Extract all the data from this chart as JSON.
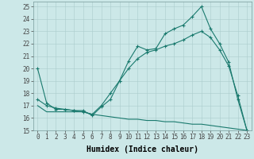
{
  "xlabel": "Humidex (Indice chaleur)",
  "ylabel": "",
  "background_color": "#cce8e8",
  "grid_color": "#aacccc",
  "line_color": "#1a7a6e",
  "xlim": [
    -0.5,
    23.5
  ],
  "ylim": [
    15,
    25.4
  ],
  "xticks": [
    0,
    1,
    2,
    3,
    4,
    5,
    6,
    7,
    8,
    9,
    10,
    11,
    12,
    13,
    14,
    15,
    16,
    17,
    18,
    19,
    20,
    21,
    22,
    23
  ],
  "yticks": [
    15,
    16,
    17,
    18,
    19,
    20,
    21,
    22,
    23,
    24,
    25
  ],
  "line1_x": [
    0,
    1,
    2,
    3,
    4,
    5,
    6,
    7,
    8,
    9,
    10,
    11,
    12,
    13,
    14,
    15,
    16,
    17,
    18,
    19,
    20,
    21,
    22,
    23
  ],
  "line1_y": [
    20,
    17.2,
    16.7,
    16.7,
    16.6,
    16.6,
    16.2,
    16.9,
    17.5,
    19.0,
    20.6,
    21.8,
    21.5,
    21.6,
    22.8,
    23.2,
    23.5,
    24.2,
    25.0,
    23.2,
    22.0,
    20.5,
    17.5,
    15.0
  ],
  "line2_x": [
    0,
    1,
    2,
    3,
    4,
    5,
    6,
    7,
    8,
    9,
    10,
    11,
    12,
    13,
    14,
    15,
    16,
    17,
    18,
    19,
    20,
    21,
    22,
    23
  ],
  "line2_y": [
    17.5,
    17.0,
    16.8,
    16.7,
    16.6,
    16.5,
    16.3,
    17.0,
    18.0,
    19.0,
    20.0,
    20.8,
    21.3,
    21.5,
    21.8,
    22.0,
    22.3,
    22.7,
    23.0,
    22.5,
    21.5,
    20.2,
    17.8,
    15.0
  ],
  "line3_x": [
    0,
    1,
    2,
    3,
    4,
    5,
    6,
    7,
    8,
    9,
    10,
    11,
    12,
    13,
    14,
    15,
    16,
    17,
    18,
    19,
    20,
    21,
    22,
    23
  ],
  "line3_y": [
    17.0,
    16.5,
    16.5,
    16.5,
    16.5,
    16.5,
    16.3,
    16.2,
    16.1,
    16.0,
    15.9,
    15.9,
    15.8,
    15.8,
    15.7,
    15.7,
    15.6,
    15.5,
    15.5,
    15.4,
    15.3,
    15.2,
    15.1,
    15.0
  ],
  "fontsize_label": 6.5,
  "fontsize_tick": 5.5,
  "fontsize_xlabel": 7.0
}
